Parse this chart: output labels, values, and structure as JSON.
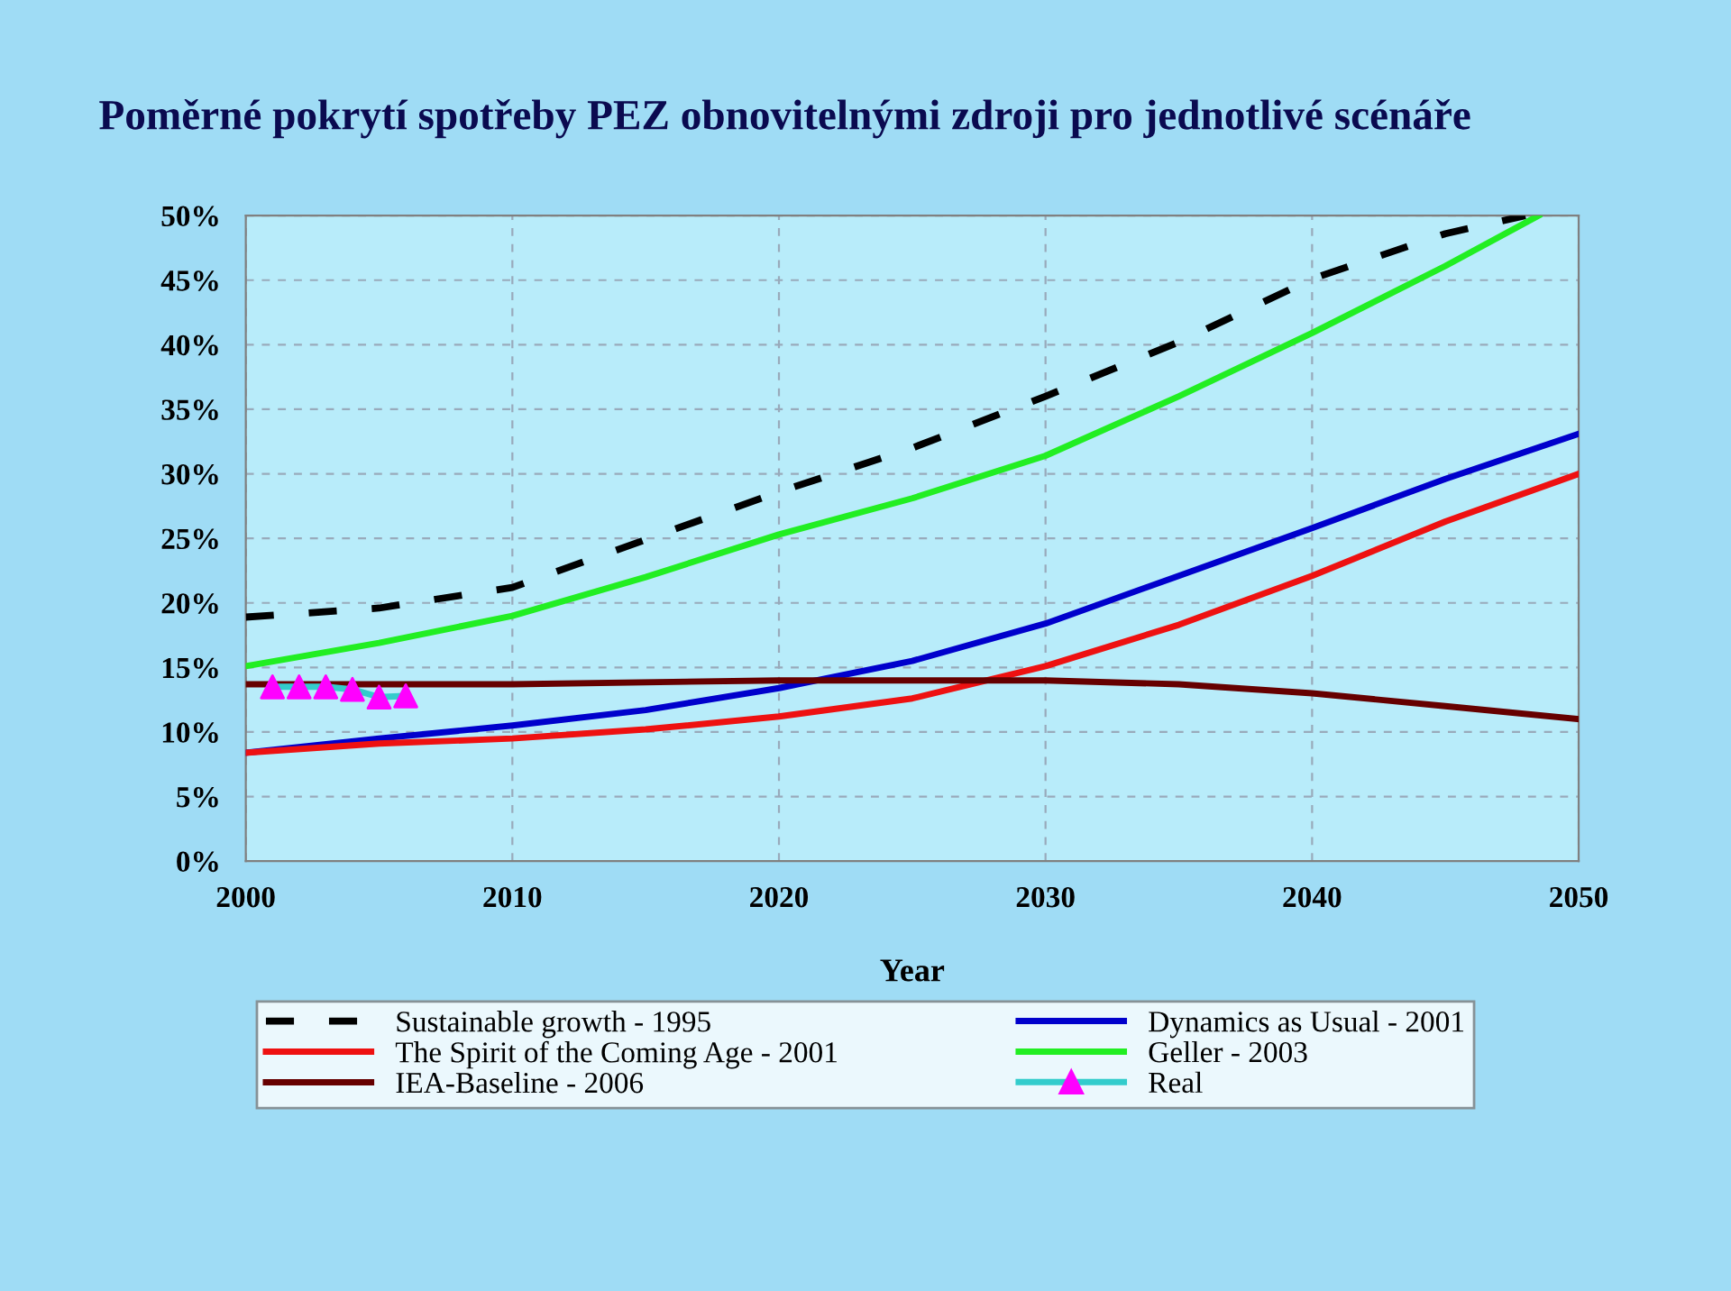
{
  "chart_data": {
    "type": "line",
    "title": "Poměrné pokrytí spotřeby PEZ obnovitelnými zdroji pro jednotlivé scénáře",
    "xlabel": "Year",
    "xlim": [
      2000,
      2050
    ],
    "xticks": [
      2000,
      2010,
      2020,
      2030,
      2040,
      2050
    ],
    "ylim": [
      0,
      50
    ],
    "yticks": [
      {
        "value": 0,
        "label": "0%"
      },
      {
        "value": 5,
        "label": "5%"
      },
      {
        "value": 10,
        "label": "10%"
      },
      {
        "value": 15,
        "label": "15%"
      },
      {
        "value": 20,
        "label": "20%"
      },
      {
        "value": 25,
        "label": "25%"
      },
      {
        "value": 30,
        "label": "30%"
      },
      {
        "value": 35,
        "label": "35%"
      },
      {
        "value": 40,
        "label": "40%"
      },
      {
        "value": 45,
        "label": "45%"
      },
      {
        "value": 50,
        "label": "50%"
      }
    ],
    "grid": true,
    "legend": "bottom",
    "series": [
      {
        "name": "Sustainable growth - 1995",
        "color": "#000000",
        "line_style": "dashed",
        "x": [
          2000,
          2005,
          2010,
          2015,
          2020,
          2025,
          2030,
          2035,
          2040,
          2045,
          2048
        ],
        "values": [
          18.9,
          19.6,
          21.2,
          24.9,
          28.6,
          32,
          36,
          40.2,
          45.1,
          48.6,
          50
        ]
      },
      {
        "name": "Dynamics as Usual - 2001",
        "color": "#0000cc",
        "line_style": "solid",
        "x": [
          2000,
          2005,
          2010,
          2015,
          2020,
          2025,
          2030,
          2035,
          2040,
          2045,
          2050
        ],
        "values": [
          8.4,
          9.5,
          10.5,
          11.7,
          13.4,
          15.5,
          18.4,
          22.1,
          25.8,
          29.6,
          33.1
        ]
      },
      {
        "name": "The Spirit of the Coming Age - 2001",
        "color": "#ee1111",
        "line_style": "solid",
        "x": [
          2000,
          2005,
          2010,
          2015,
          2020,
          2025,
          2030,
          2035,
          2040,
          2045,
          2050
        ],
        "values": [
          8.4,
          9.1,
          9.5,
          10.2,
          11.2,
          12.6,
          15.1,
          18.3,
          22.1,
          26.3,
          30
        ]
      },
      {
        "name": "Geller - 2003",
        "color": "#22ee22",
        "line_style": "solid",
        "x": [
          2000,
          2005,
          2010,
          2015,
          2020,
          2025,
          2030,
          2035,
          2040,
          2045,
          2048.5
        ],
        "values": [
          15.1,
          16.9,
          19,
          22,
          25.3,
          28.1,
          31.4,
          36,
          40.9,
          46.1,
          50
        ]
      },
      {
        "name": "IEA-Baseline - 2006",
        "color": "#660000",
        "line_style": "solid",
        "x": [
          2000,
          2010,
          2020,
          2030,
          2035,
          2040,
          2045,
          2050
        ],
        "values": [
          13.7,
          13.7,
          14,
          14,
          13.7,
          13,
          12,
          11
        ]
      },
      {
        "name": "Real",
        "color": "#33cccc",
        "line_style": "solid",
        "marker": "triangle",
        "colors": [
          "#ff00ff",
          "#ff00ff",
          "#ff00ff",
          "#ff00ff",
          "#ff00ff",
          "#ff00ff"
        ],
        "x": [
          2001,
          2002,
          2003,
          2004,
          2005,
          2006
        ],
        "values": [
          13.5,
          13.5,
          13.5,
          13.3,
          12.7,
          12.8
        ]
      }
    ]
  }
}
